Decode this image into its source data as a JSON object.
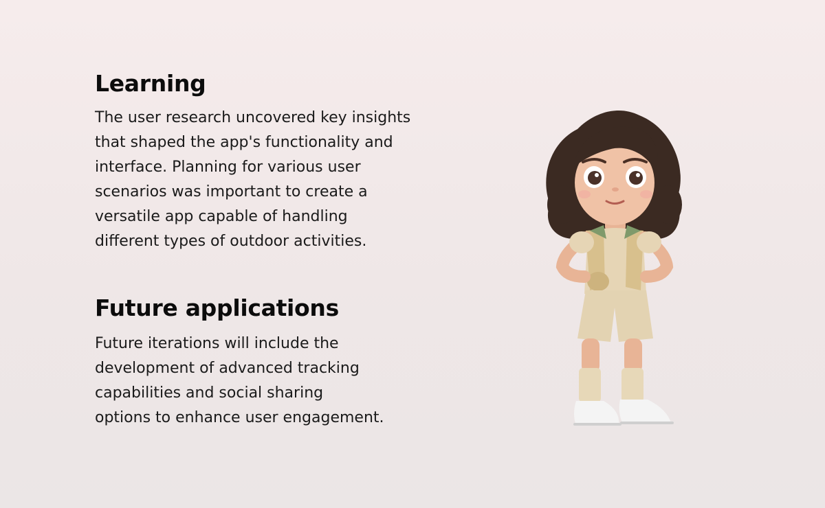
{
  "learning": {
    "title": "Learning",
    "lines": [
      "The user research uncovered key insights",
      "that shaped the app's functionality and",
      "interface. Planning for various user",
      "scenarios was important to create a",
      "versatile app capable of handling",
      "different types of outdoor activities."
    ]
  },
  "future": {
    "title": "Future applications",
    "lines": [
      "Future iterations will include the",
      "development of advanced tracking",
      "capabilities and social sharing",
      "options to enhance user engagement."
    ]
  },
  "illustration": {
    "name": "explorer-girl-character",
    "colors": {
      "hair": "#3b2a22",
      "skin": "#f0c2a6",
      "outfit": "#e6d5b5",
      "vest": "#d8c08d",
      "collar": "#7f9a6b",
      "socks": "#e7d8b8",
      "shoes": "#f4f4f4"
    }
  }
}
